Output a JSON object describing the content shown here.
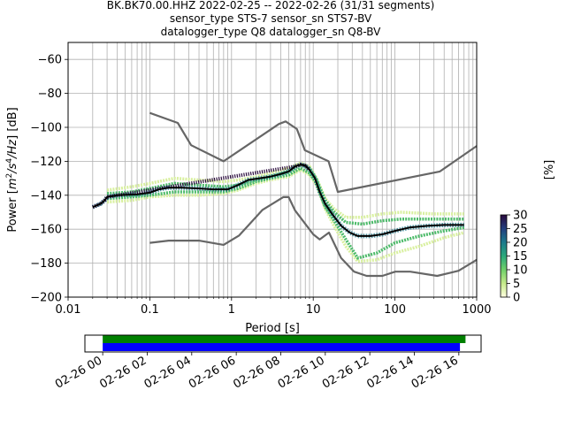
{
  "title_lines": [
    "BK.BK70.00.HHZ   2022-02-25 -- 2022-02-26  (31/31 segments)",
    "sensor_type STS-7 sensor_sn STS7-BV",
    "datalogger_type Q8 datalogger_sn Q8-BV"
  ],
  "chart_data": {
    "type": "heatmap",
    "xlabel": "Period [s]",
    "ylabel_parts": [
      "Power [",
      "m",
      "2",
      "/s",
      "4",
      "/Hz",
      "] [dB]"
    ],
    "xscale": "log",
    "xlim": [
      0.01,
      1000
    ],
    "ylim": [
      -200,
      -50
    ],
    "xticks": [
      0.01,
      0.1,
      1,
      10,
      100,
      1000
    ],
    "xticklabels": [
      "0.01",
      "0.1",
      "1",
      "10",
      "100",
      "1000"
    ],
    "yticks": [
      -60,
      -80,
      -100,
      -120,
      -140,
      -160,
      -180,
      -200
    ],
    "yticklabels": [
      "−60",
      "−80",
      "−100",
      "−120",
      "−140",
      "−160",
      "−180",
      "−200"
    ],
    "grid": true,
    "colorbar": {
      "label": "[%]",
      "range": [
        0,
        30
      ],
      "ticks": [
        0,
        5,
        10,
        15,
        20,
        25,
        30
      ],
      "ticklabels": [
        "0",
        "5",
        "10",
        "15",
        "20",
        "25",
        "30"
      ],
      "colors": [
        "#ffffe0",
        "#c6ea8a",
        "#6fd06a",
        "#2aa87a",
        "#1c7a8c",
        "#243f7e",
        "#2a0a3d"
      ]
    },
    "series": [
      {
        "role": "new_high_noise_model",
        "color": "#666666",
        "points": [
          [
            0.1,
            -91.5
          ],
          [
            0.22,
            -97.4
          ],
          [
            0.32,
            -110.5
          ],
          [
            0.8,
            -120
          ],
          [
            3.8,
            -98
          ],
          [
            4.6,
            -96.5
          ],
          [
            6.3,
            -101
          ],
          [
            7.9,
            -113.5
          ],
          [
            15.4,
            -120
          ],
          [
            20,
            -138
          ],
          [
            354.8,
            -126
          ],
          [
            1000,
            -111
          ]
        ]
      },
      {
        "role": "new_low_noise_model",
        "color": "#666666",
        "points": [
          [
            0.1,
            -168
          ],
          [
            0.17,
            -166.7
          ],
          [
            0.4,
            -166.7
          ],
          [
            0.8,
            -169.2
          ],
          [
            1.24,
            -163.7
          ],
          [
            2.4,
            -148.6
          ],
          [
            4.3,
            -141.1
          ],
          [
            5,
            -141.1
          ],
          [
            6,
            -149
          ],
          [
            10,
            -163
          ],
          [
            12,
            -166
          ],
          [
            15.6,
            -162
          ],
          [
            21.9,
            -177
          ],
          [
            31.6,
            -185
          ],
          [
            45,
            -187.5
          ],
          [
            70,
            -187.5
          ],
          [
            101,
            -185
          ],
          [
            154,
            -185
          ],
          [
            328,
            -187.5
          ],
          [
            600,
            -184.5
          ],
          [
            1000,
            -178
          ]
        ]
      },
      {
        "role": "mode",
        "color": "#000000",
        "points": [
          [
            0.02,
            -147
          ],
          [
            0.025,
            -145
          ],
          [
            0.028,
            -143
          ],
          [
            0.03,
            -141
          ],
          [
            0.04,
            -140
          ],
          [
            0.07,
            -139.5
          ],
          [
            0.1,
            -138.5
          ],
          [
            0.13,
            -136.5
          ],
          [
            0.17,
            -135.5
          ],
          [
            0.25,
            -135.5
          ],
          [
            0.4,
            -136
          ],
          [
            0.6,
            -136.5
          ],
          [
            0.9,
            -136.5
          ],
          [
            1.2,
            -134
          ],
          [
            1.6,
            -131
          ],
          [
            2.2,
            -130
          ],
          [
            3,
            -129
          ],
          [
            4,
            -127.5
          ],
          [
            5,
            -126
          ],
          [
            6,
            -123
          ],
          [
            7,
            -122
          ],
          [
            8,
            -122.5
          ],
          [
            9,
            -125
          ],
          [
            10.5,
            -130
          ],
          [
            12,
            -138
          ],
          [
            14,
            -145
          ],
          [
            17,
            -151
          ],
          [
            22,
            -158
          ],
          [
            28,
            -162
          ],
          [
            35,
            -164
          ],
          [
            50,
            -164
          ],
          [
            70,
            -163
          ],
          [
            100,
            -161
          ],
          [
            150,
            -159
          ],
          [
            250,
            -158
          ],
          [
            400,
            -157.5
          ],
          [
            700,
            -157.5
          ]
        ]
      }
    ],
    "density_bands": [
      {
        "color_value": 4,
        "color": "#d9f0a0",
        "points": [
          [
            0.03,
            -137
          ],
          [
            0.06,
            -135
          ],
          [
            0.1,
            -133
          ],
          [
            0.2,
            -130
          ],
          [
            0.4,
            -131
          ],
          [
            0.8,
            -132
          ],
          [
            1.2,
            -131
          ],
          [
            2,
            -129
          ],
          [
            3,
            -127
          ],
          [
            5,
            -124
          ],
          [
            7,
            -121
          ],
          [
            9,
            -123
          ],
          [
            11,
            -130
          ],
          [
            14,
            -142
          ],
          [
            18,
            -148
          ],
          [
            25,
            -153
          ],
          [
            40,
            -153
          ],
          [
            70,
            -151
          ],
          [
            120,
            -150
          ],
          [
            300,
            -151
          ],
          [
            700,
            -151
          ]
        ]
      },
      {
        "color_value": 4,
        "color": "#d9f0a0",
        "points": [
          [
            0.03,
            -144
          ],
          [
            0.06,
            -143
          ],
          [
            0.1,
            -141
          ],
          [
            0.2,
            -140
          ],
          [
            0.4,
            -140
          ],
          [
            0.8,
            -139
          ],
          [
            1.2,
            -137
          ],
          [
            2,
            -133
          ],
          [
            3,
            -131
          ],
          [
            5,
            -129
          ],
          [
            7,
            -125
          ],
          [
            9,
            -128
          ],
          [
            11,
            -134
          ],
          [
            14,
            -148
          ],
          [
            18,
            -158
          ],
          [
            25,
            -170
          ],
          [
            35,
            -179
          ],
          [
            60,
            -178
          ],
          [
            100,
            -174
          ],
          [
            200,
            -170
          ],
          [
            400,
            -165
          ],
          [
            700,
            -162
          ]
        ]
      },
      {
        "color_value": 12,
        "color": "#4dbb6a",
        "points": [
          [
            0.03,
            -139
          ],
          [
            0.06,
            -138
          ],
          [
            0.1,
            -136
          ],
          [
            0.2,
            -133
          ],
          [
            0.4,
            -134
          ],
          [
            0.8,
            -135
          ],
          [
            1.2,
            -134
          ],
          [
            2,
            -131
          ],
          [
            3,
            -129
          ],
          [
            5,
            -126
          ],
          [
            7,
            -122
          ],
          [
            9,
            -124
          ],
          [
            11,
            -131
          ],
          [
            14,
            -143
          ],
          [
            18,
            -150
          ],
          [
            25,
            -156
          ],
          [
            40,
            -157
          ],
          [
            70,
            -155
          ],
          [
            120,
            -154
          ],
          [
            300,
            -154
          ],
          [
            700,
            -154
          ]
        ]
      },
      {
        "color_value": 12,
        "color": "#4dbb6a",
        "points": [
          [
            0.03,
            -142
          ],
          [
            0.06,
            -141
          ],
          [
            0.1,
            -140
          ],
          [
            0.2,
            -138
          ],
          [
            0.4,
            -138
          ],
          [
            0.8,
            -138
          ],
          [
            1.2,
            -136
          ],
          [
            2,
            -132
          ],
          [
            3,
            -130
          ],
          [
            5,
            -128
          ],
          [
            7,
            -124
          ],
          [
            9,
            -127
          ],
          [
            11,
            -133
          ],
          [
            14,
            -147
          ],
          [
            18,
            -155
          ],
          [
            25,
            -166
          ],
          [
            35,
            -177
          ],
          [
            60,
            -174
          ],
          [
            100,
            -168
          ],
          [
            200,
            -164
          ],
          [
            400,
            -161
          ],
          [
            700,
            -159
          ]
        ]
      }
    ],
    "availability": {
      "xticklabels": [
        "02-26 00",
        "02-26 02",
        "02-26 04",
        "02-26 06",
        "02-26 08",
        "02-26 10",
        "02-26 12",
        "02-26 14",
        "02-26 16"
      ],
      "bars": [
        {
          "color": "#008000",
          "start": 0.0,
          "end": 16.3
        },
        {
          "color": "#0000ff",
          "start": 0.0,
          "end": 16.05
        }
      ],
      "axis_range": [
        -0.8,
        17.0
      ]
    }
  }
}
